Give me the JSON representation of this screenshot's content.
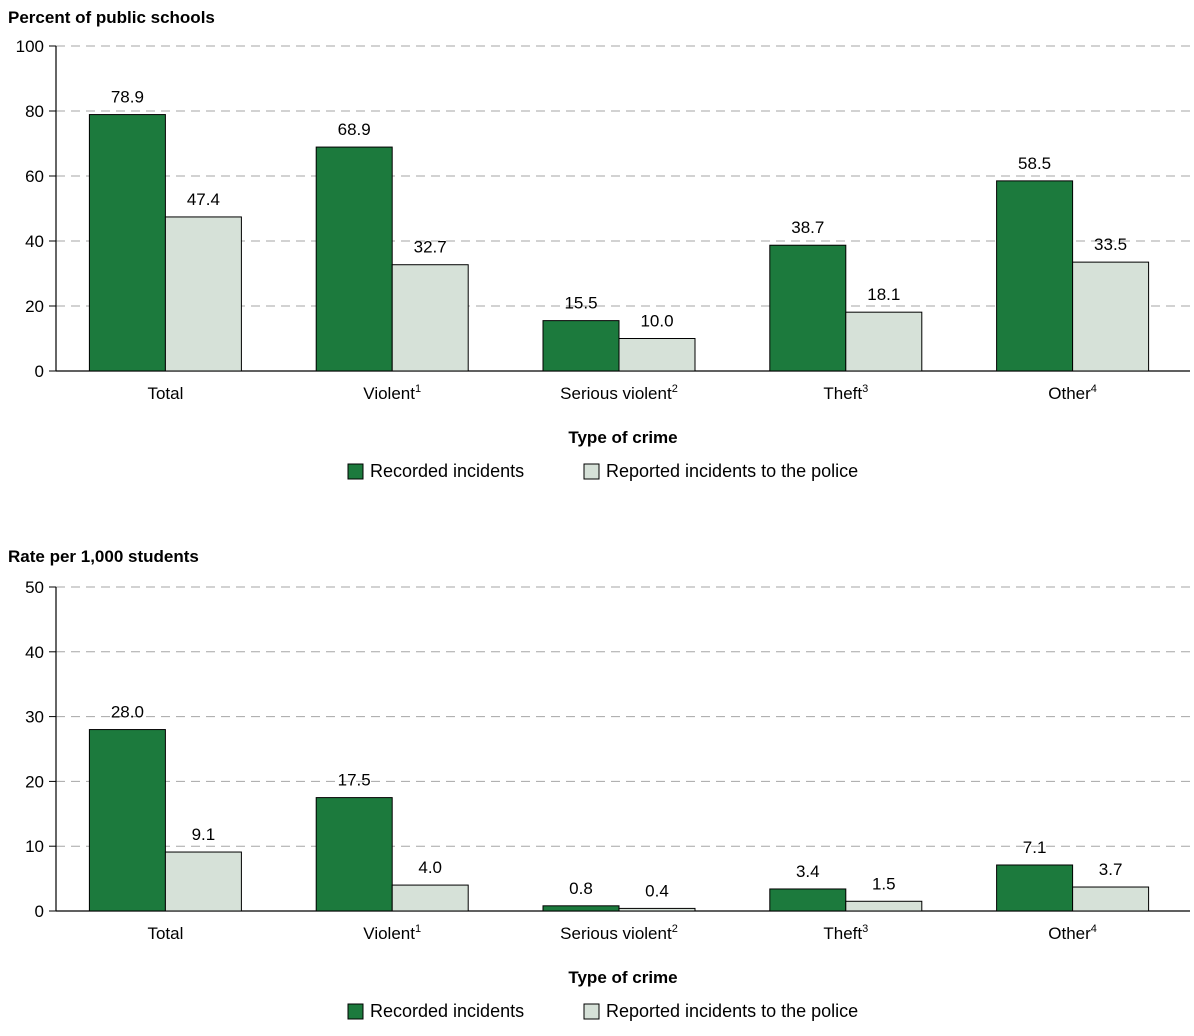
{
  "colors": {
    "recorded": "#1c7a3d",
    "reported": "#d6e1d8",
    "gridline": "#a6a6a6",
    "axis": "#000000",
    "text": "#000000"
  },
  "chart_data": [
    {
      "type": "bar",
      "ylabel": "Percent of public schools",
      "xlabel": "Type of crime",
      "categories": [
        "Total",
        "Violent",
        "Serious violent",
        "Theft",
        "Other"
      ],
      "category_footnotes": [
        "",
        "1",
        "2",
        "3",
        "4"
      ],
      "series": [
        {
          "name": "Recorded incidents",
          "values": [
            78.9,
            68.9,
            15.5,
            38.7,
            58.5
          ],
          "labels": [
            "78.9",
            "68.9",
            "15.5",
            "38.7",
            "58.5"
          ]
        },
        {
          "name": "Reported incidents to the police",
          "values": [
            47.4,
            32.7,
            10.0,
            18.1,
            33.5
          ],
          "labels": [
            "47.4",
            "32.7",
            "10.0",
            "18.1",
            "33.5"
          ]
        }
      ],
      "ylim": [
        0,
        100
      ],
      "yticks": [
        0,
        20,
        40,
        60,
        80,
        100
      ],
      "grid": true,
      "legend_position": "bottom-center"
    },
    {
      "type": "bar",
      "ylabel": "Rate per 1,000 students",
      "xlabel": "Type of crime",
      "categories": [
        "Total",
        "Violent",
        "Serious violent",
        "Theft",
        "Other"
      ],
      "category_footnotes": [
        "",
        "1",
        "2",
        "3",
        "4"
      ],
      "series": [
        {
          "name": "Recorded incidents",
          "values": [
            28.0,
            17.5,
            0.8,
            3.4,
            7.1
          ],
          "labels": [
            "28.0",
            "17.5",
            "0.8",
            "3.4",
            "7.1"
          ]
        },
        {
          "name": "Reported incidents to the police",
          "values": [
            9.1,
            4.0,
            0.4,
            1.5,
            3.7
          ],
          "labels": [
            "9.1",
            "4.0",
            "0.4",
            "1.5",
            "3.7"
          ]
        }
      ],
      "ylim": [
        0,
        50
      ],
      "yticks": [
        0,
        10,
        20,
        30,
        40,
        50
      ],
      "grid": true,
      "legend_position": "bottom-center"
    }
  ]
}
